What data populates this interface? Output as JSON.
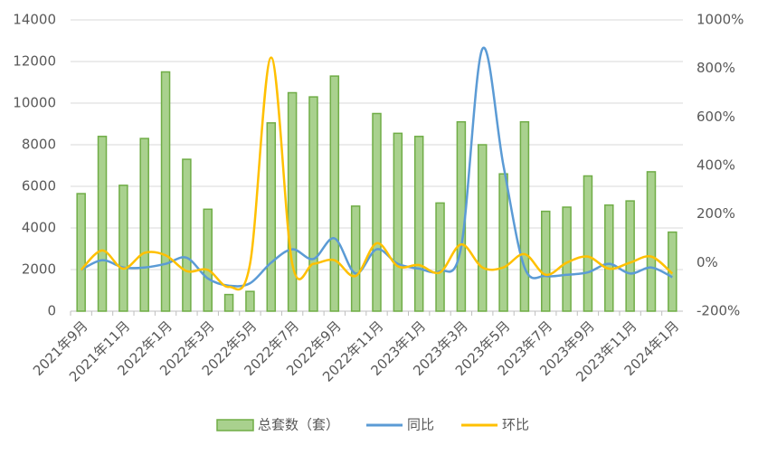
{
  "chart_data": {
    "type": "bar_line",
    "categories": [
      "2021年9月",
      null,
      "2021年11月",
      null,
      "2022年1月",
      null,
      "2022年3月",
      null,
      "2022年5月",
      null,
      "2022年7月",
      null,
      "2022年9月",
      null,
      "2022年11月",
      null,
      "2023年1月",
      null,
      "2023年3月",
      null,
      "2023年5月",
      null,
      "2023年7月",
      null,
      "2023年9月",
      null,
      "2023年11月",
      null,
      "2024年1月"
    ],
    "series": [
      {
        "name": "总套数（套）",
        "type": "bar",
        "color": "#a9d18e",
        "edge_color": "#70ad47",
        "values": [
          5650,
          8400,
          6050,
          8300,
          11500,
          7300,
          4900,
          800,
          950,
          9050,
          10500,
          10300,
          11300,
          5050,
          9500,
          8550,
          8400,
          5200,
          9100,
          8000,
          6600,
          9100,
          4800,
          5000,
          6500,
          5100,
          5300,
          6700,
          3800
        ]
      },
      {
        "name": "同比",
        "type": "line",
        "axis": "y2",
        "color": "#5b9bd5",
        "values": [
          -30,
          10,
          -20,
          -20,
          -5,
          20,
          -65,
          -95,
          -85,
          0,
          55,
          15,
          100,
          -45,
          55,
          -5,
          -25,
          -35,
          65,
          880,
          400,
          -20,
          -55,
          -50,
          -40,
          -5,
          -45,
          -20,
          -60
        ]
      },
      {
        "name": "环比",
        "type": "line",
        "axis": "y2",
        "color": "#ffc000",
        "values": [
          -30,
          50,
          -25,
          40,
          30,
          -35,
          -30,
          -100,
          -5,
          845,
          -5,
          -5,
          10,
          -55,
          80,
          -15,
          -10,
          -40,
          75,
          -20,
          -20,
          35,
          -50,
          0,
          25,
          -25,
          0,
          25,
          -45
        ]
      }
    ],
    "ylim": [
      0,
      14000
    ],
    "yticks": [
      0,
      2000,
      4000,
      6000,
      8000,
      10000,
      12000,
      14000
    ],
    "y2lim": [
      -200,
      1000
    ],
    "y2ticks": [
      {
        "value": -200,
        "label": "-200%"
      },
      {
        "value": 0,
        "label": "0%"
      },
      {
        "value": 200,
        "label": "200%"
      },
      {
        "value": 400,
        "label": "400%"
      },
      {
        "value": 600,
        "label": "600%"
      },
      {
        "value": 800,
        "label": "800%"
      },
      {
        "value": 1000,
        "label": "1000%"
      }
    ],
    "grid": true,
    "legend": "bottom"
  }
}
